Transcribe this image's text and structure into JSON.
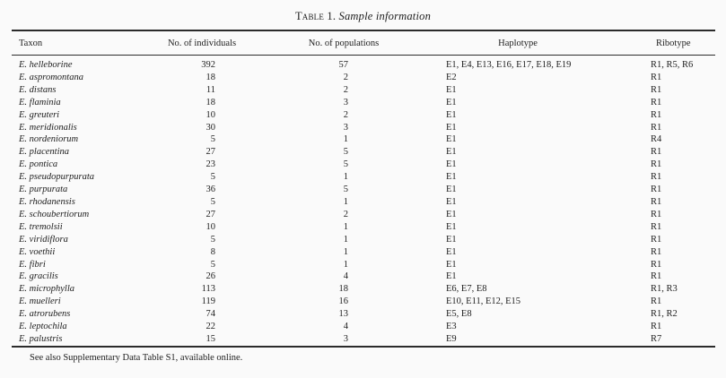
{
  "title": {
    "label": "Table 1.",
    "caption": "Sample information"
  },
  "table": {
    "columns": [
      {
        "key": "taxon",
        "label": "Taxon"
      },
      {
        "key": "individuals",
        "label": "No. of individuals"
      },
      {
        "key": "populations",
        "label": "No. of populations"
      },
      {
        "key": "haplotype",
        "label": "Haplotype"
      },
      {
        "key": "ribotype",
        "label": "Ribotype"
      }
    ],
    "rows": [
      {
        "taxon": "E. helleborine",
        "individuals": "392",
        "populations": "57",
        "haplotype": "E1, E4, E13, E16, E17, E18, E19",
        "ribotype": "R1, R5, R6"
      },
      {
        "taxon": "E. aspromontana",
        "individuals": "18",
        "populations": "2",
        "haplotype": "E2",
        "ribotype": "R1"
      },
      {
        "taxon": "E. distans",
        "individuals": "11",
        "populations": "2",
        "haplotype": "E1",
        "ribotype": "R1"
      },
      {
        "taxon": "E. flaminia",
        "individuals": "18",
        "populations": "3",
        "haplotype": "E1",
        "ribotype": "R1"
      },
      {
        "taxon": "E. greuteri",
        "individuals": "10",
        "populations": "2",
        "haplotype": "E1",
        "ribotype": "R1"
      },
      {
        "taxon": "E. meridionalis",
        "individuals": "30",
        "populations": "3",
        "haplotype": "E1",
        "ribotype": "R1"
      },
      {
        "taxon": "E. nordeniorum",
        "individuals": "5",
        "populations": "1",
        "haplotype": "E1",
        "ribotype": "R4"
      },
      {
        "taxon": "E. placentina",
        "individuals": "27",
        "populations": "5",
        "haplotype": "E1",
        "ribotype": "R1"
      },
      {
        "taxon": "E. pontica",
        "individuals": "23",
        "populations": "5",
        "haplotype": "E1",
        "ribotype": "R1"
      },
      {
        "taxon": "E. pseudopurpurata",
        "individuals": "5",
        "populations": "1",
        "haplotype": "E1",
        "ribotype": "R1"
      },
      {
        "taxon": "E. purpurata",
        "individuals": "36",
        "populations": "5",
        "haplotype": "E1",
        "ribotype": "R1"
      },
      {
        "taxon": "E. rhodanensis",
        "individuals": "5",
        "populations": "1",
        "haplotype": "E1",
        "ribotype": "R1"
      },
      {
        "taxon": "E. schoubertiorum",
        "individuals": "27",
        "populations": "2",
        "haplotype": "E1",
        "ribotype": "R1"
      },
      {
        "taxon": "E. tremolsii",
        "individuals": "10",
        "populations": "1",
        "haplotype": "E1",
        "ribotype": "R1"
      },
      {
        "taxon": "E. viridiflora",
        "individuals": "5",
        "populations": "1",
        "haplotype": "E1",
        "ribotype": "R1"
      },
      {
        "taxon": "E. voethii",
        "individuals": "8",
        "populations": "1",
        "haplotype": "E1",
        "ribotype": "R1"
      },
      {
        "taxon": "E. fibri",
        "individuals": "5",
        "populations": "1",
        "haplotype": "E1",
        "ribotype": "R1"
      },
      {
        "taxon": "E. gracilis",
        "individuals": "26",
        "populations": "4",
        "haplotype": "E1",
        "ribotype": "R1"
      },
      {
        "taxon": "E. microphylla",
        "individuals": "113",
        "populations": "18",
        "haplotype": "E6, E7, E8",
        "ribotype": "R1, R3"
      },
      {
        "taxon": "E. muelleri",
        "individuals": "119",
        "populations": "16",
        "haplotype": "E10, E11, E12, E15",
        "ribotype": "R1"
      },
      {
        "taxon": "E. atrorubens",
        "individuals": "74",
        "populations": "13",
        "haplotype": "E5, E8",
        "ribotype": "R1, R2"
      },
      {
        "taxon": "E. leptochila",
        "individuals": "22",
        "populations": "4",
        "haplotype": "E3",
        "ribotype": "R1"
      },
      {
        "taxon": "E. palustris",
        "individuals": "15",
        "populations": "3",
        "haplotype": "E9",
        "ribotype": "R7"
      }
    ]
  },
  "footnote": "See also Supplementary Data Table S1, available online."
}
